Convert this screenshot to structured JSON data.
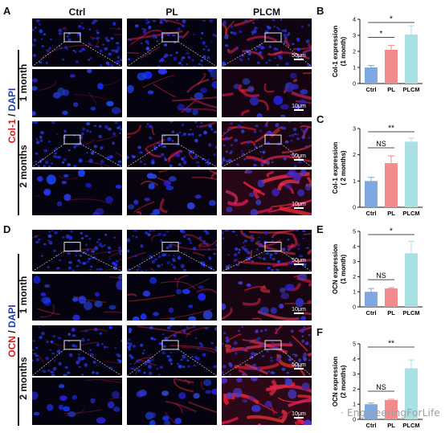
{
  "panels": {
    "A": "A",
    "B": "B",
    "C": "C",
    "D": "D",
    "E": "E",
    "F": "F"
  },
  "columns": [
    "Ctrl",
    "PL",
    "PLCM"
  ],
  "rows": {
    "m1": "1 month",
    "m2": "2 months"
  },
  "stain_top": {
    "marker": "Col-1",
    "sep": " / ",
    "dapi": "DAPI"
  },
  "stain_bottom": {
    "marker": "OCN",
    "sep": " / ",
    "dapi": "DAPI"
  },
  "scalebars": {
    "overview": "50μm",
    "zoom": "10μm"
  },
  "watermark": "· EngineeringForLife",
  "colors": {
    "ctrl": "#7fa7e0",
    "pl": "#f28b8b",
    "plcm": "#a8e0e4",
    "marker": "#e31a1c",
    "dapi": "#1f3fb0"
  },
  "chart_data": [
    {
      "panel": "B",
      "type": "bar",
      "categories": [
        "Ctrl",
        "PL",
        "PLCM"
      ],
      "values": [
        1.0,
        2.1,
        3.05
      ],
      "errors": [
        0.12,
        0.28,
        0.55
      ],
      "ylabel": "Col-1 expression\n(1 month)",
      "ylim": [
        0,
        4
      ],
      "yticks": [
        "0",
        "1",
        "2",
        "3",
        "4"
      ],
      "significance": [
        {
          "pair": [
            0,
            1
          ],
          "label": "*"
        },
        {
          "pair": [
            0,
            2
          ],
          "label": "*"
        }
      ]
    },
    {
      "panel": "C",
      "type": "bar",
      "categories": [
        "Ctrl",
        "PL",
        "PLCM"
      ],
      "values": [
        1.0,
        1.68,
        2.5
      ],
      "errors": [
        0.14,
        0.28,
        0.14
      ],
      "ylabel": "Col-1 expression\n( 2 months)",
      "ylim": [
        0,
        3
      ],
      "yticks": [
        "0",
        "1",
        "2",
        "3"
      ],
      "significance": [
        {
          "pair": [
            0,
            1
          ],
          "label": "NS"
        },
        {
          "pair": [
            0,
            2
          ],
          "label": "**"
        }
      ]
    },
    {
      "panel": "E",
      "type": "bar",
      "categories": [
        "Ctrl",
        "PL",
        "PLCM"
      ],
      "values": [
        1.0,
        1.22,
        3.55
      ],
      "errors": [
        0.22,
        0.05,
        0.8
      ],
      "ylabel": "OCN expression\n(1 month)",
      "ylim": [
        0,
        5
      ],
      "yticks": [
        "0",
        "1",
        "2",
        "3",
        "4",
        "5"
      ],
      "significance": [
        {
          "pair": [
            0,
            1
          ],
          "label": "NS"
        },
        {
          "pair": [
            0,
            2
          ],
          "label": "*"
        }
      ]
    },
    {
      "panel": "F",
      "type": "bar",
      "categories": [
        "Ctrl",
        "PL",
        "PLCM"
      ],
      "values": [
        1.0,
        1.28,
        3.38
      ],
      "errors": [
        0.08,
        0.05,
        0.55
      ],
      "ylabel": "OCN expression\n(2 months)",
      "ylim": [
        0,
        5
      ],
      "yticks": [
        "0",
        "1",
        "2",
        "3",
        "4",
        "5"
      ],
      "significance": [
        {
          "pair": [
            0,
            1
          ],
          "label": "NS"
        },
        {
          "pair": [
            0,
            2
          ],
          "label": "**"
        }
      ]
    }
  ]
}
